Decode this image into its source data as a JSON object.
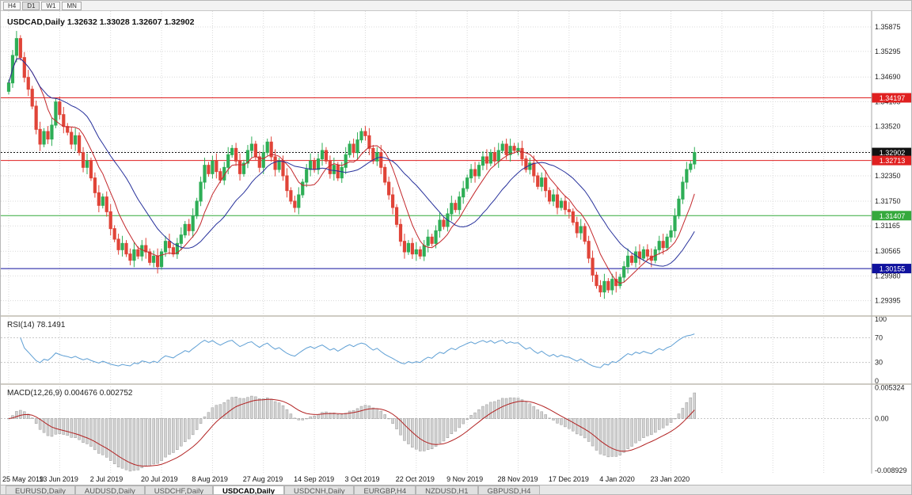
{
  "window": {
    "timeframe_buttons": [
      "H4",
      "D1",
      "W1",
      "MN"
    ],
    "active_timeframe": "D1"
  },
  "chart": {
    "title": "USDCAD,Daily 1.32632 1.33028 1.32607 1.32902",
    "symbol": "USDCAD",
    "period": "Daily",
    "ohlc": {
      "open": "1.32632",
      "high": "1.33028",
      "low": "1.32607",
      "close": "1.32902"
    }
  },
  "colors": {
    "up": "#2eae56",
    "down": "#e04438",
    "grid": "#d9d9d9",
    "bg": "#ffffff",
    "axis_line": "#a8a8a8",
    "separator": "#cfccc4"
  },
  "chart_data": {
    "type": "candlestick",
    "title": "USDCAD,Daily",
    "x_labels": [
      "25 May 2019",
      "13 Jun 2019",
      "2 Jul 2019",
      "20 Jul 2019",
      "8 Aug 2019",
      "27 Aug 2019",
      "14 Sep 2019",
      "3 Oct 2019",
      "22 Oct 2019",
      "9 Nov 2019",
      "28 Nov 2019",
      "17 Dec 2019",
      "4 Jan 2020",
      "23 Jan 2020"
    ],
    "bars_per_label": 13,
    "wick_base": 0.0008,
    "wick_step": 0.0005,
    "closes": [
      1.3455,
      1.352,
      1.356,
      1.3515,
      1.3468,
      1.344,
      1.34,
      1.3345,
      1.331,
      1.334,
      1.3322,
      1.3355,
      1.341,
      1.338,
      1.3352,
      1.3338,
      1.331,
      1.333,
      1.329,
      1.3255,
      1.327,
      1.323,
      1.3195,
      1.3165,
      1.3185,
      1.315,
      1.311,
      1.3085,
      1.306,
      1.3075,
      1.305,
      1.3035,
      1.306,
      1.3045,
      1.307,
      1.3055,
      1.303,
      1.3045,
      1.302,
      1.3055,
      1.308,
      1.3065,
      1.305,
      1.3075,
      1.3095,
      1.312,
      1.3105,
      1.314,
      1.3175,
      1.322,
      1.326,
      1.324,
      1.327,
      1.3245,
      1.3225,
      1.3255,
      1.3285,
      1.33,
      1.327,
      1.324,
      1.3265,
      1.3295,
      1.331,
      1.328,
      1.3255,
      1.329,
      1.3315,
      1.328,
      1.325,
      1.327,
      1.3235,
      1.32,
      1.3175,
      1.316,
      1.319,
      1.322,
      1.325,
      1.327,
      1.325,
      1.3275,
      1.3295,
      1.327,
      1.324,
      1.326,
      1.323,
      1.3255,
      1.3285,
      1.331,
      1.329,
      1.332,
      1.334,
      1.333,
      1.33,
      1.327,
      1.329,
      1.3255,
      1.322,
      1.319,
      1.316,
      1.312,
      1.308,
      1.3055,
      1.3075,
      1.305,
      1.306,
      1.3045,
      1.307,
      1.309,
      1.3075,
      1.3105,
      1.313,
      1.3115,
      1.3145,
      1.317,
      1.3155,
      1.3185,
      1.3205,
      1.323,
      1.325,
      1.3235,
      1.326,
      1.328,
      1.3265,
      1.329,
      1.327,
      1.3295,
      1.331,
      1.3285,
      1.3305,
      1.3295,
      1.33,
      1.3275,
      1.325,
      1.3265,
      1.3235,
      1.321,
      1.323,
      1.32,
      1.3175,
      1.319,
      1.316,
      1.3175,
      1.3155,
      1.315,
      1.3125,
      1.31,
      1.3115,
      1.308,
      1.304,
      1.3,
      1.2975,
      1.296,
      1.2985,
      1.2965,
      1.299,
      1.2975,
      1.2995,
      1.302,
      1.3045,
      1.303,
      1.3055,
      1.304,
      1.306,
      1.3045,
      1.3035,
      1.306,
      1.308,
      1.3065,
      1.309,
      1.3105,
      1.314,
      1.318,
      1.322,
      1.325,
      1.3263,
      1.32902
    ],
    "y_axis": {
      "min": 1.2905,
      "max": 1.3625,
      "labels": [
        "1.35875",
        "1.35295",
        "1.34690",
        "1.34105",
        "1.33520",
        "1.32935",
        "1.32350",
        "1.31750",
        "1.31165",
        "1.30565",
        "1.29980",
        "1.29395"
      ]
    },
    "overlays": {
      "ma_fast": {
        "period": 8,
        "color": "#c3272b"
      },
      "ma_slow": {
        "period": 20,
        "color": "#26309b"
      }
    },
    "h_lines": [
      {
        "value": 1.34197,
        "label": "1.34197",
        "color": "#e02020",
        "style": "solid"
      },
      {
        "value": 1.32902,
        "label": "1.32902",
        "color": "#111111",
        "style": "dotted"
      },
      {
        "value": 1.32713,
        "label": "1.32713",
        "color": "#e02020",
        "style": "solid"
      },
      {
        "value": 1.31407,
        "label": "1.31407",
        "color": "#35a93c",
        "style": "solid"
      },
      {
        "value": 1.30155,
        "label": "1.30155",
        "color": "#10129e",
        "style": "solid"
      }
    ],
    "rsi": {
      "label": "RSI(14) 78.1491",
      "period": 14,
      "value": "78.1491",
      "axis_labels": [
        "100",
        "70",
        "30",
        "0"
      ],
      "levels": [
        70,
        30
      ],
      "range": [
        0,
        100
      ],
      "color": "#5e9fd4"
    },
    "macd": {
      "label": "MACD(12,26,9) 0.004676 0.002752",
      "fast": 12,
      "slow": 26,
      "signal": 9,
      "main_value": "0.004676",
      "signal_value": "0.002752",
      "axis_labels": [
        "0.005324",
        "0.00",
        "-0.008929"
      ],
      "axis_values": [
        0.005324,
        0.0,
        -0.008929
      ],
      "range": [
        -0.0095,
        0.0058
      ],
      "histogram_color": "#d2d2d2",
      "histogram_stroke": "#9a9a9a",
      "signal_color": "#b22222"
    }
  },
  "tabs": {
    "items": [
      "EURUSD,Daily",
      "AUDUSD,Daily",
      "USDCHF,Daily",
      "USDCAD,Daily",
      "USDCNH,Daily",
      "EURGBP,H4",
      "NZDUSD,H1",
      "GBPUSD,H4"
    ],
    "active": "USDCAD,Daily"
  }
}
